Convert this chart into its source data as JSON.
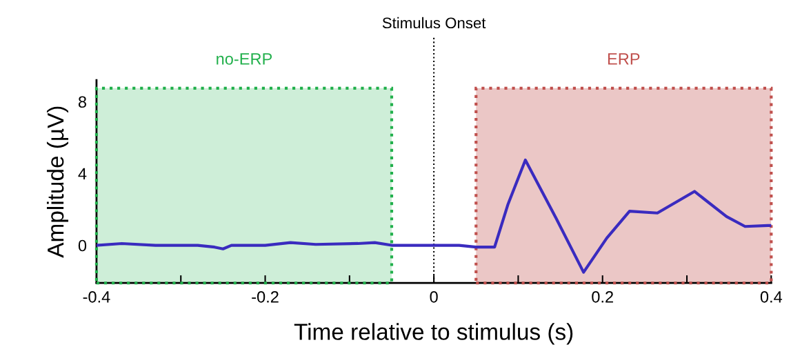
{
  "chart_data": {
    "type": "line",
    "xlabel": "Time relative to stimulus (s)",
    "ylabel": "Amplitude (µV)",
    "x": [
      -0.4,
      -0.37,
      -0.33,
      -0.28,
      -0.26,
      -0.25,
      -0.24,
      -0.2,
      -0.17,
      -0.14,
      -0.09,
      -0.07,
      -0.05,
      0,
      0.03,
      0.05,
      0.072,
      0.088,
      0.1085,
      0.145,
      0.1775,
      0.205,
      0.232,
      0.265,
      0.309,
      0.347,
      0.369,
      0.396,
      0.4
    ],
    "series": [
      {
        "color": "#3a2bbf",
        "values": [
          0,
          0.1,
          0.0,
          0.0,
          -0.1,
          -0.2,
          0.0,
          0.0,
          0.15,
          0.05,
          0.1,
          0.15,
          0.0,
          0.0,
          0.0,
          -0.1,
          -0.1,
          2.3,
          4.75,
          1.5,
          -1.5,
          0.4,
          1.9,
          1.8,
          3.0,
          1.6,
          1.05,
          1.1,
          1.1
        ]
      }
    ],
    "xlim": [
      -0.4,
      0.4
    ],
    "ylim": [
      -2.1,
      9.2
    ],
    "xticks": [
      -0.4,
      {
        "value": -0.3,
        "label": null
      },
      -0.2,
      {
        "value": -0.1,
        "label": null
      },
      0,
      {
        "value": 0.1,
        "label": null
      },
      0.2,
      {
        "value": 0.3,
        "label": null
      },
      0.4
    ],
    "yticks": [
      0,
      4,
      8
    ],
    "grid": false,
    "ref_lines": [
      {
        "axis": "x",
        "value": 0,
        "label": "Stimulus Onset",
        "color": "#000000",
        "line_style": "dotted"
      }
    ],
    "bands": [
      {
        "axis": "x",
        "from": -0.4,
        "to": -0.05,
        "label": "no-ERP",
        "color": "#22b04c"
      },
      {
        "axis": "x",
        "from": 0.05,
        "to": 0.4,
        "label": "ERP",
        "color": "#c0504d"
      }
    ]
  }
}
